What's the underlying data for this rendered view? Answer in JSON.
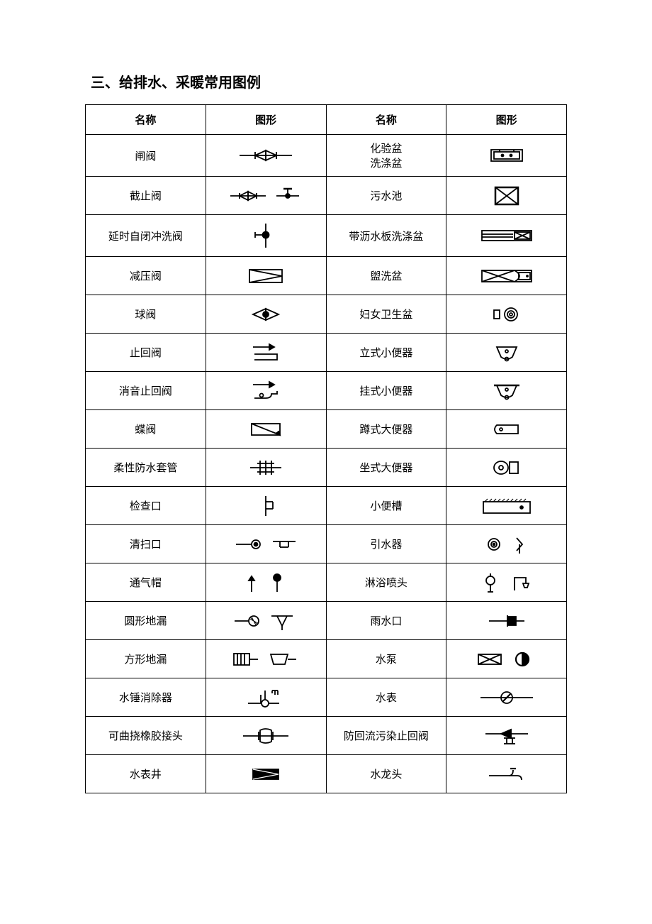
{
  "title": "三、给排水、采暖常用图例",
  "headers": {
    "name1": "名称",
    "symbol1": "图形",
    "name2": "名称",
    "symbol2": "图形"
  },
  "rows": [
    {
      "left_name": "闸阀",
      "left_symbol": "gate-valve",
      "right_name": "化验盆\n洗涤盆",
      "right_symbol": "lab-sink"
    },
    {
      "left_name": "截止阀",
      "left_symbol": "stop-valve",
      "right_name": "污水池",
      "right_symbol": "sewage-pool"
    },
    {
      "left_name": "延时自闭冲洗阀",
      "left_symbol": "delay-flush-valve",
      "right_name": "带沥水板洗涤盆",
      "right_symbol": "drain-board-sink"
    },
    {
      "left_name": "减压阀",
      "left_symbol": "reducing-valve",
      "right_name": "盥洗盆",
      "right_symbol": "wash-basin"
    },
    {
      "left_name": "球阀",
      "left_symbol": "ball-valve",
      "right_name": "妇女卫生盆",
      "right_symbol": "bidet"
    },
    {
      "left_name": "止回阀",
      "left_symbol": "check-valve",
      "right_name": "立式小便器",
      "right_symbol": "standing-urinal"
    },
    {
      "left_name": "消音止回阀",
      "left_symbol": "silent-check-valve",
      "right_name": "挂式小便器",
      "right_symbol": "wall-urinal"
    },
    {
      "left_name": "蝶阀",
      "left_symbol": "butterfly-valve",
      "right_name": "蹲式大便器",
      "right_symbol": "squat-toilet"
    },
    {
      "left_name": "柔性防水套管",
      "left_symbol": "flexible-sleeve",
      "right_name": "坐式大便器",
      "right_symbol": "seat-toilet"
    },
    {
      "left_name": "检查口",
      "left_symbol": "inspection-port",
      "right_name": "小便槽",
      "right_symbol": "urinal-trough"
    },
    {
      "left_name": "清扫口",
      "left_symbol": "cleanout",
      "right_name": "引水器",
      "right_symbol": "water-diverter"
    },
    {
      "left_name": "通气帽",
      "left_symbol": "vent-cap",
      "right_name": "淋浴喷头",
      "right_symbol": "shower-head"
    },
    {
      "left_name": "圆形地漏",
      "left_symbol": "round-drain",
      "right_name": "雨水口",
      "right_symbol": "rainwater-inlet"
    },
    {
      "left_name": "方形地漏",
      "left_symbol": "square-drain",
      "right_name": "水泵",
      "right_symbol": "pump"
    },
    {
      "left_name": "水锤消除器",
      "left_symbol": "hammer-arrestor",
      "right_name": "水表",
      "right_symbol": "water-meter"
    },
    {
      "left_name": "可曲挠橡胶接头",
      "left_symbol": "rubber-joint",
      "right_name": "防回流污染止回阀",
      "right_symbol": "backflow-preventer"
    },
    {
      "left_name": "水表井",
      "left_symbol": "meter-well",
      "right_name": "水龙头",
      "right_symbol": "faucet"
    }
  ],
  "styling": {
    "border_color": "#000000",
    "background_color": "#ffffff",
    "text_color": "#000000",
    "title_fontsize": 20,
    "cell_fontsize": 15,
    "stroke_width": 1.8,
    "symbol_stroke": "#000000"
  }
}
